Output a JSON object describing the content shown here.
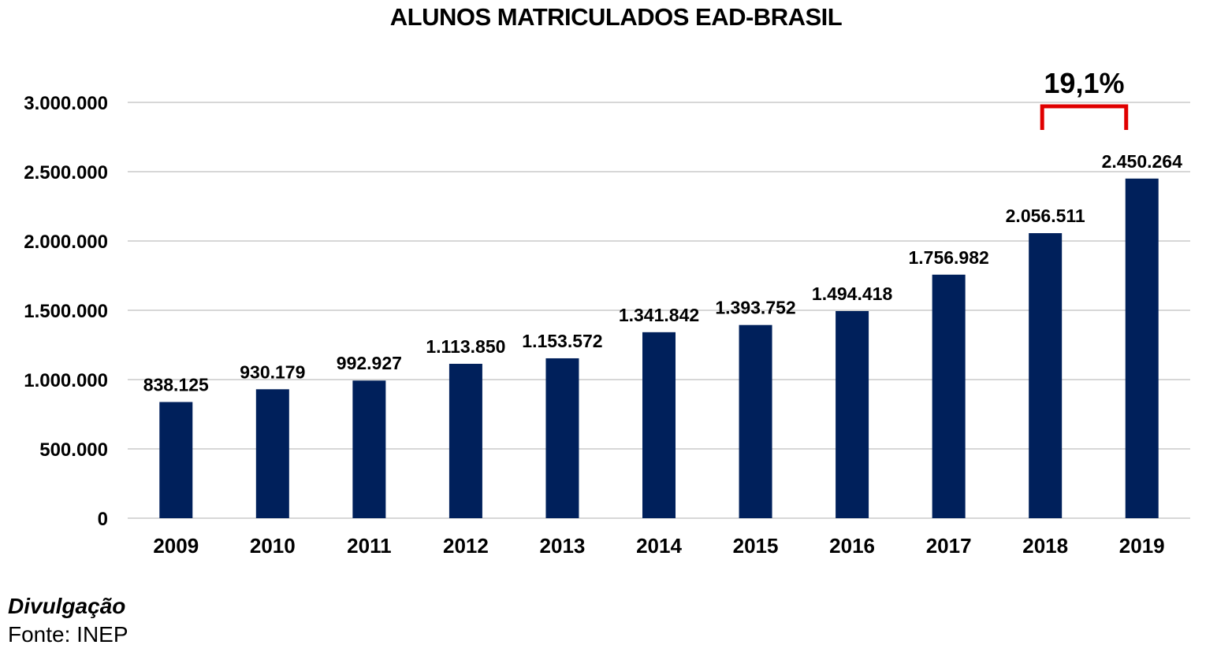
{
  "chart_data": {
    "type": "bar",
    "title": "ALUNOS MATRICULADOS EAD-BRASIL",
    "xlabel": "",
    "ylabel": "",
    "categories": [
      "2009",
      "2010",
      "2011",
      "2012",
      "2013",
      "2014",
      "2015",
      "2016",
      "2017",
      "2018",
      "2019"
    ],
    "values": [
      838125,
      930179,
      992927,
      1113850,
      1153572,
      1341842,
      1393752,
      1494418,
      1756982,
      2056511,
      2450264
    ],
    "value_labels": [
      "838.125",
      "930.179",
      "992.927",
      "1.113.850",
      "1.153.572",
      "1.341.842",
      "1.393.752",
      "1.494.418",
      "1.756.982",
      "2.056.511",
      "2.450.264"
    ],
    "ylim": [
      0,
      3000000
    ],
    "yticks": [
      0,
      500000,
      1000000,
      1500000,
      2000000,
      2500000,
      3000000
    ],
    "ytick_labels": [
      "0",
      "500.000",
      "1.000.000",
      "1.500.000",
      "2.000.000",
      "2.500.000",
      "3.000.000"
    ],
    "grid": true,
    "bar_color": "#00205b",
    "annotation": {
      "text": "19,1%",
      "from_category": "2018",
      "to_category": "2019",
      "color": "#e00000"
    }
  },
  "footer": {
    "label": "Divulgação",
    "source": "Fonte: INEP"
  }
}
